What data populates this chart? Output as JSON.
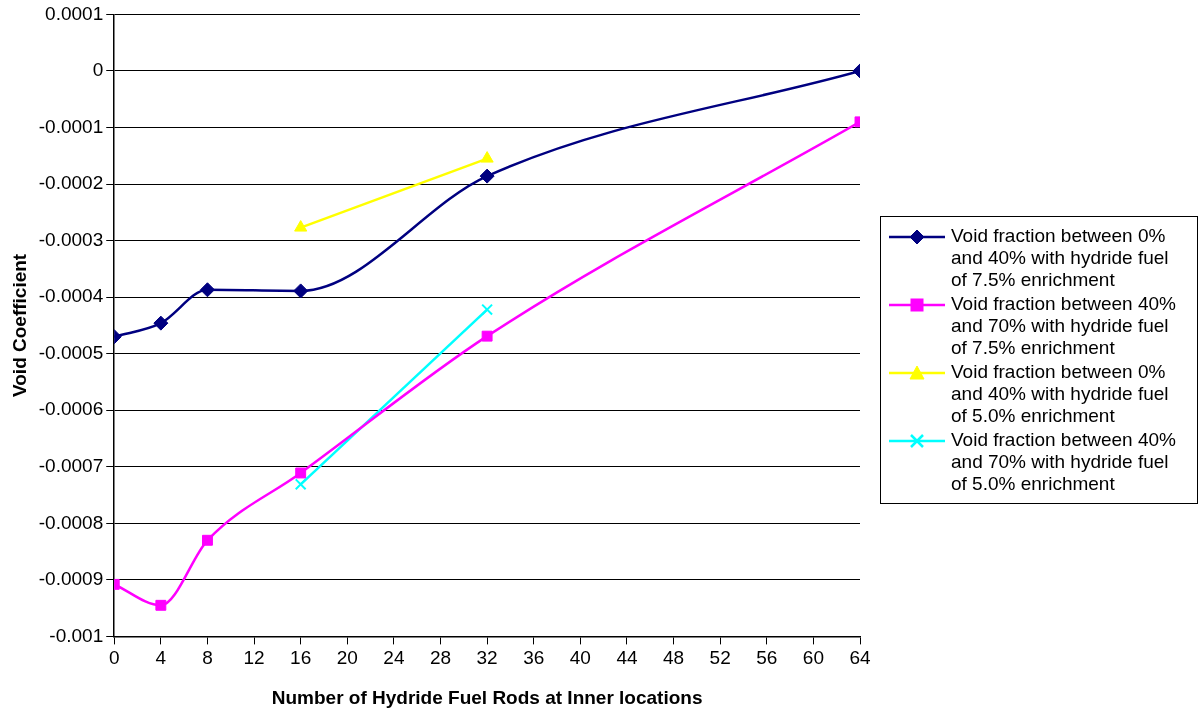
{
  "chart_data": {
    "type": "line",
    "xlabel": "Number of Hydride Fuel Rods at Inner locations",
    "ylabel": "Void Coefficient",
    "xlim": [
      0,
      64
    ],
    "xticks": [
      0,
      4,
      8,
      12,
      16,
      20,
      24,
      28,
      32,
      36,
      40,
      44,
      48,
      52,
      56,
      60,
      64
    ],
    "ylim": [
      -0.001,
      0.0001
    ],
    "yticks": [
      -0.001,
      -0.0009,
      -0.0008,
      -0.0007,
      -0.0006,
      -0.0005,
      -0.0004,
      -0.0003,
      -0.0002,
      -0.0001,
      0,
      0.0001
    ],
    "grid": "y",
    "legend": "right",
    "series": [
      {
        "name": "Void fraction between 0% and 40% with hydride fuel of 7.5% enrichment",
        "color": "#000080",
        "marker": "diamond",
        "x": [
          0,
          4,
          8,
          16,
          32,
          64
        ],
        "values": [
          -0.00047,
          -0.000446,
          -0.000387,
          -0.000389,
          -0.000186,
          0
        ]
      },
      {
        "name": "Void fraction between 40% and 70% with hydride fuel of 7.5% enrichment",
        "color": "#ff00ff",
        "marker": "square",
        "x": [
          0,
          4,
          8,
          16,
          32,
          64
        ],
        "values": [
          -0.000908,
          -0.000945,
          -0.00083,
          -0.000711,
          -0.000469,
          -9e-05
        ]
      },
      {
        "name": "Void fraction between 0% and 40% with hydride fuel of 5.0% enrichment",
        "color": "#ffff00",
        "marker": "triangle",
        "x": [
          16,
          32
        ],
        "values": [
          -0.000277,
          -0.000155
        ]
      },
      {
        "name": "Void fraction between 40% and 70% with hydride fuel of 5.0% enrichment",
        "color": "#00ffff",
        "marker": "cross",
        "x": [
          16,
          32
        ],
        "values": [
          -0.000731,
          -0.000422
        ]
      }
    ]
  }
}
